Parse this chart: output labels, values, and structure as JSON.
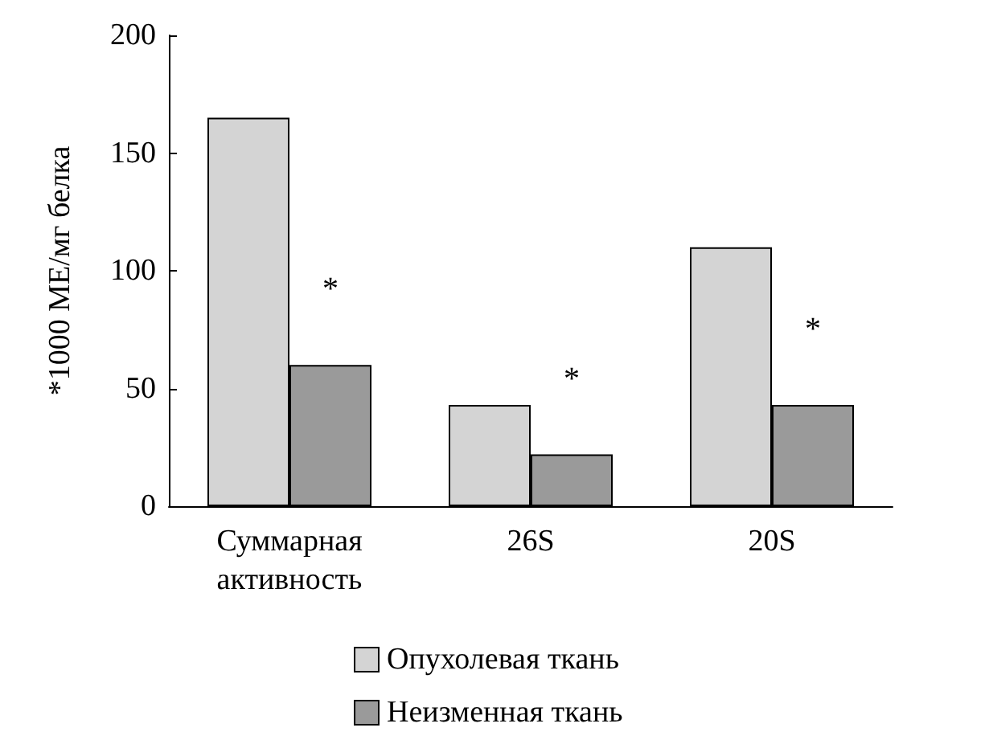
{
  "chart_data": {
    "type": "bar",
    "ylabel": "*1000 МЕ/мг белка",
    "categories": [
      "Суммарная активность",
      "26S",
      "20S"
    ],
    "series": [
      {
        "name": "Опухолевая ткань",
        "color": "#d4d4d4",
        "values": [
          165,
          43,
          110
        ]
      },
      {
        "name": "Неизменная ткань",
        "color": "#9a9a9a",
        "values": [
          60,
          22,
          43
        ]
      }
    ],
    "ylim": [
      0,
      200
    ],
    "yticks": [
      0,
      50,
      100,
      150,
      200
    ],
    "grid": false,
    "legend": "bottom",
    "annotations": [
      {
        "text": "*",
        "x": "Суммарная активность",
        "y": 60
      },
      {
        "text": "*",
        "x": "26S",
        "y": 22
      },
      {
        "text": "*",
        "x": "20S",
        "y": 43
      }
    ]
  }
}
